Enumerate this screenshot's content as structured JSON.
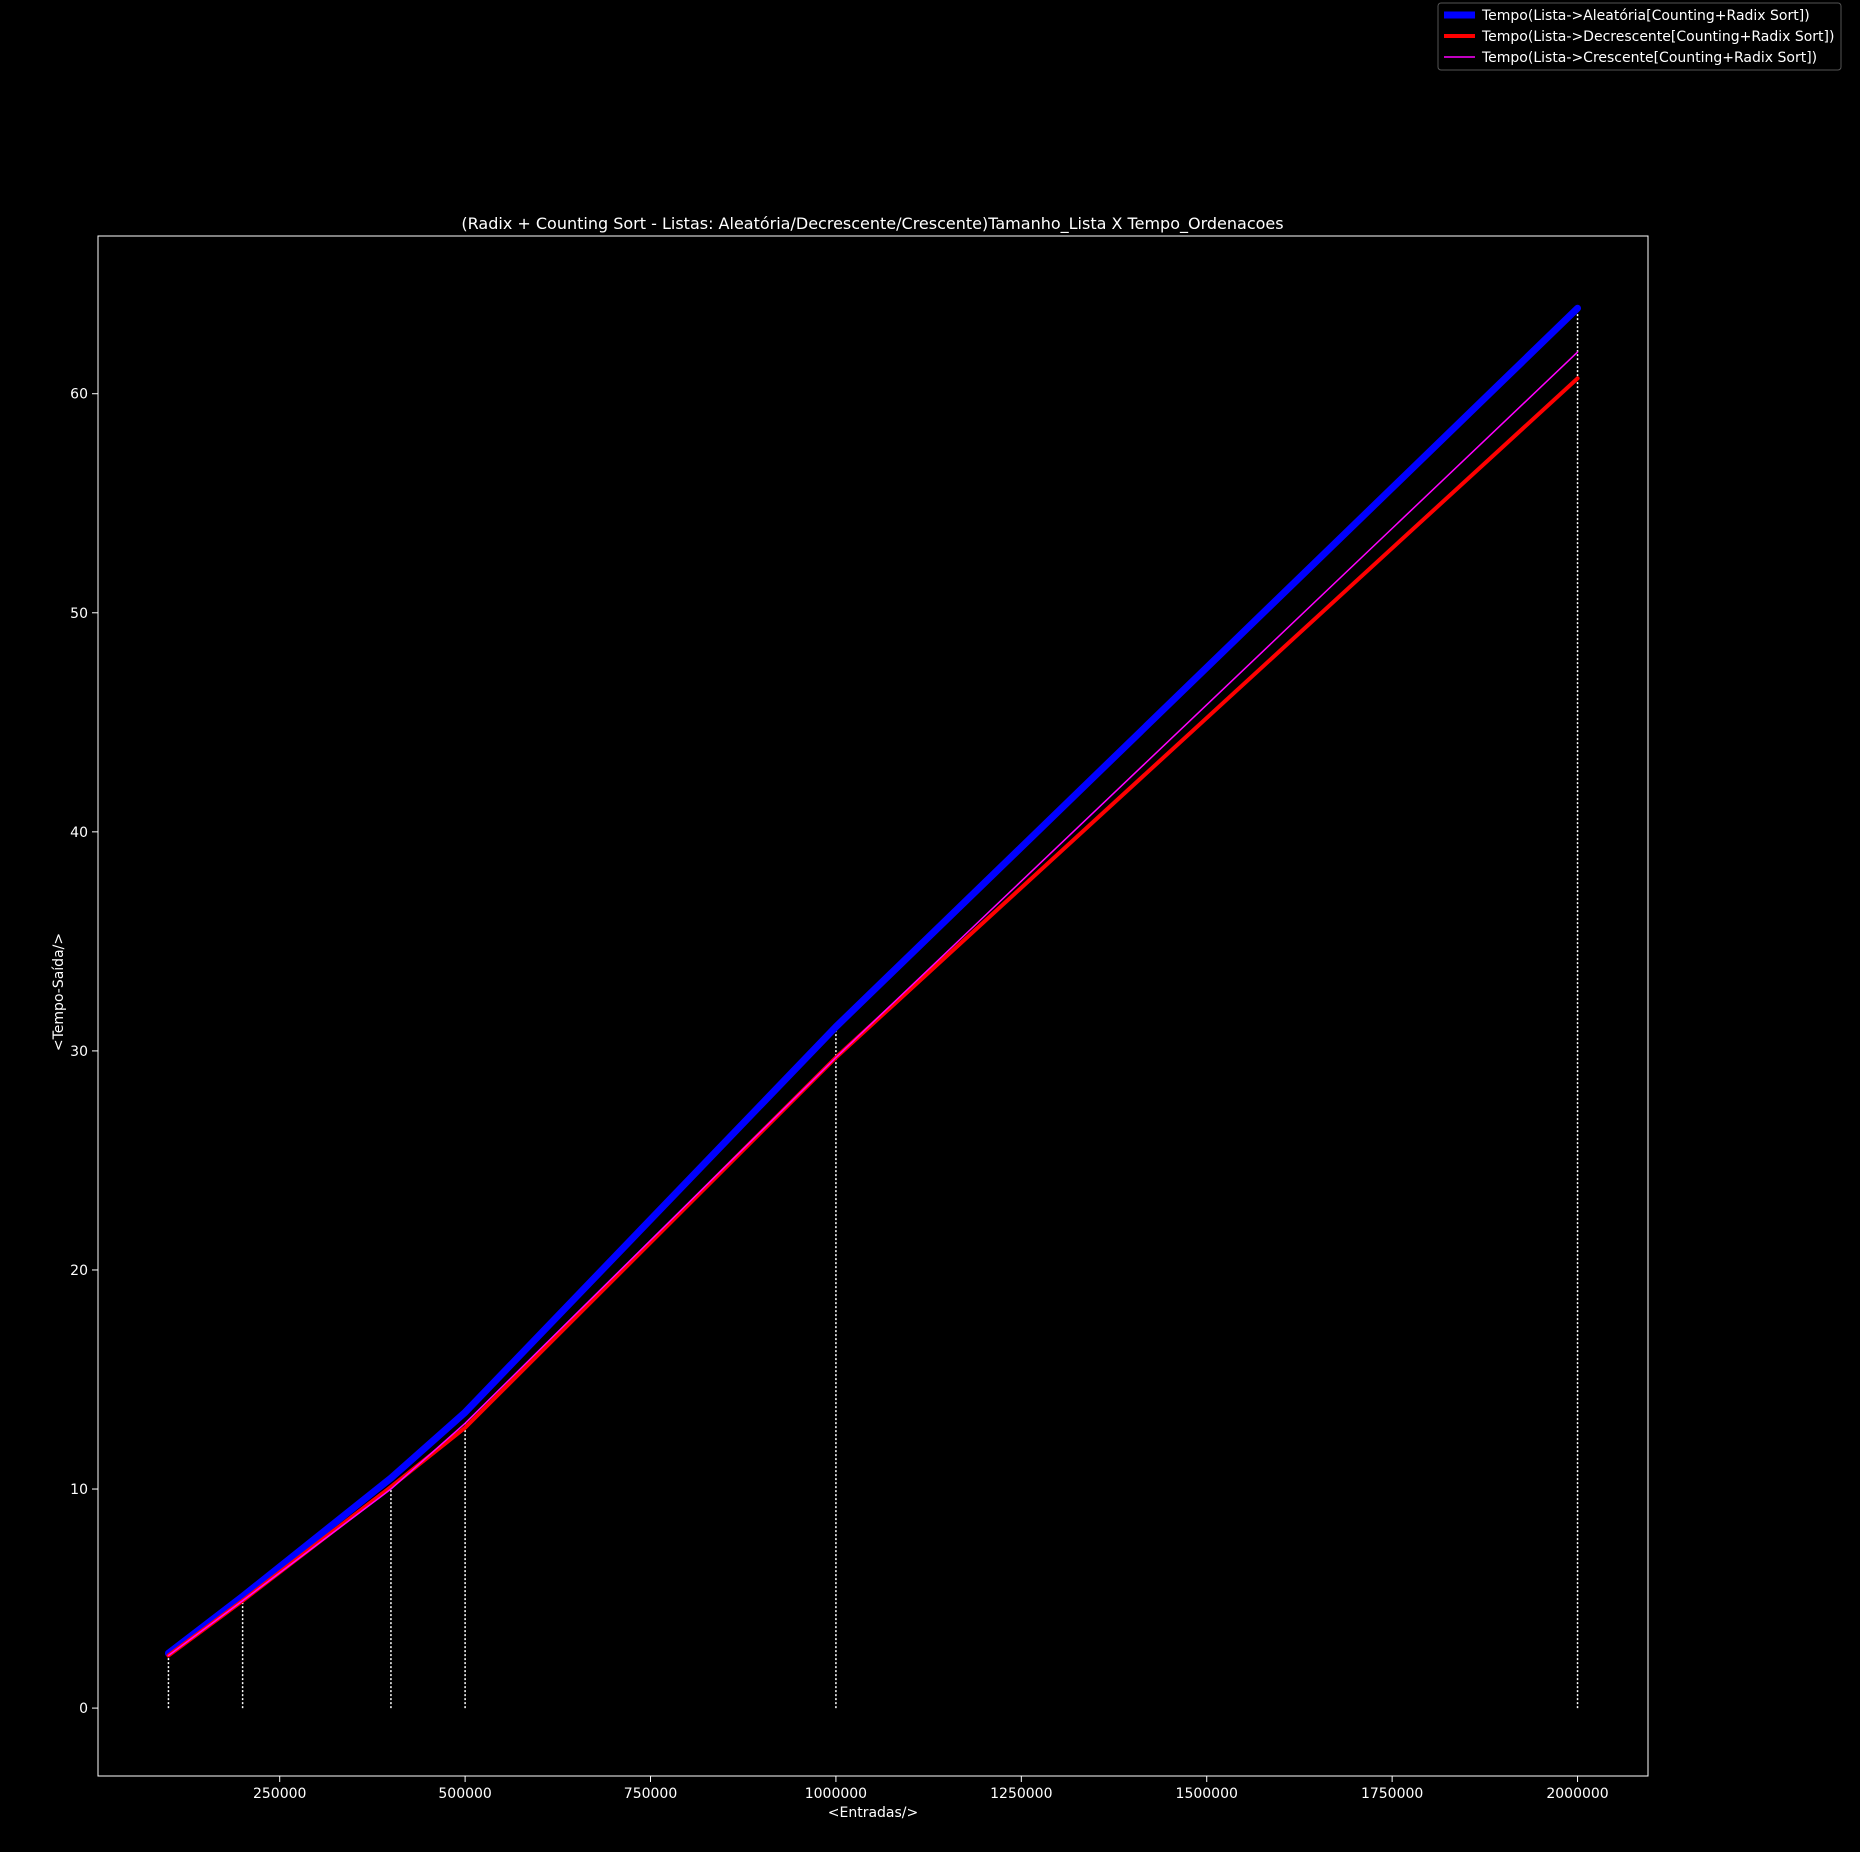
{
  "colors": {
    "background": "#000000",
    "foreground": "#ffffff",
    "guide": "#ffffff"
  },
  "chart_data": {
    "type": "line",
    "title": "(Radix + Counting Sort - Listas: Aleatória/Decrescente/Crescente)Tamanho_Lista X Tempo_Ordenacoes",
    "xlabel": "<Entradas/>",
    "ylabel": "<Tempo-Saída/>",
    "xlim": [
      5000,
      2095000
    ],
    "ylim": [
      -3.1,
      67.2
    ],
    "xticks": [
      250000,
      500000,
      750000,
      1000000,
      1250000,
      1500000,
      1750000,
      2000000
    ],
    "yticks": [
      0,
      10,
      20,
      30,
      40,
      50,
      60
    ],
    "x": [
      100000,
      200000,
      400000,
      500000,
      1000000,
      2000000
    ],
    "guide_lines": {
      "style": "dotted",
      "color": "#ffffff",
      "x": [
        100000,
        200000,
        400000,
        500000,
        1000000,
        2000000
      ],
      "y": [
        2.4,
        4.9,
        10.2,
        13.0,
        30.9,
        63.9
      ]
    },
    "grid": false,
    "legend_position": "top-right",
    "series": [
      {
        "name": "Tempo(Lista->Aleatória[Counting+Radix Sort])",
        "color": "#0000ff",
        "line_width": 7,
        "values": [
          2.5,
          5.1,
          10.5,
          13.5,
          31.1,
          63.9
        ]
      },
      {
        "name": "Tempo(Lista->Decrescente[Counting+Radix Sort])",
        "color": "#ff0000",
        "line_width": 4,
        "values": [
          2.4,
          4.9,
          10.1,
          12.8,
          29.7,
          60.7
        ]
      },
      {
        "name": "Tempo(Lista->Crescente[Counting+Radix Sort])",
        "color": "#ff00ff",
        "line_width": 1.5,
        "values": [
          2.4,
          4.9,
          10.0,
          13.0,
          29.7,
          61.9
        ]
      }
    ]
  }
}
